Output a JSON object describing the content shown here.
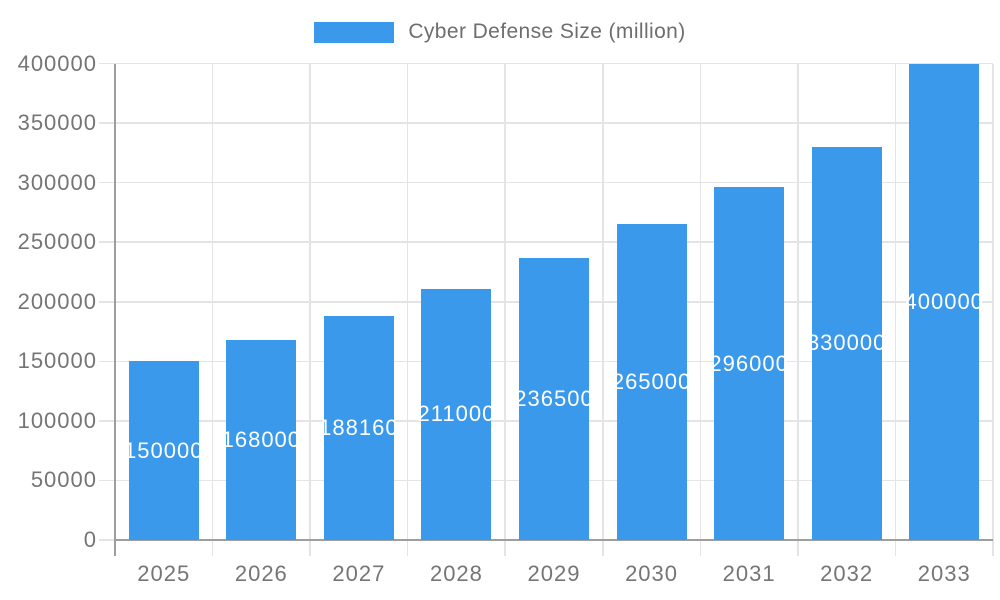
{
  "colors": {
    "bar": "#3B99EC",
    "grid": "#E4E4E4",
    "axis": "#9E9E9E",
    "tick_text": "#757575",
    "legend_text": "#6E6E6E",
    "value_label_text": "#FFFFFF",
    "background": "#FFFFFF"
  },
  "chart_data": {
    "type": "bar",
    "title": "",
    "categories": [
      "2025",
      "2026",
      "2027",
      "2028",
      "2029",
      "2030",
      "2031",
      "2032",
      "2033"
    ],
    "series": [
      {
        "name": "Cyber Defense Size (million)",
        "values": [
          150000,
          168000,
          188160,
          211000,
          236500,
          265000,
          296000,
          330000,
          400000
        ],
        "value_labels": [
          "150000",
          "168000",
          "188160",
          "211000",
          "236500",
          "265000",
          "296000",
          "330000",
          "400000"
        ]
      }
    ],
    "xlabel": "",
    "ylabel": "",
    "ylim": [
      0,
      400000
    ],
    "ytick_step": 50000,
    "ytick_labels": [
      "0",
      "50000",
      "100000",
      "150000",
      "200000",
      "250000",
      "300000",
      "350000",
      "400000"
    ],
    "grid": true,
    "legend_position": "top",
    "value_labels_position": "center-inside-bar"
  }
}
